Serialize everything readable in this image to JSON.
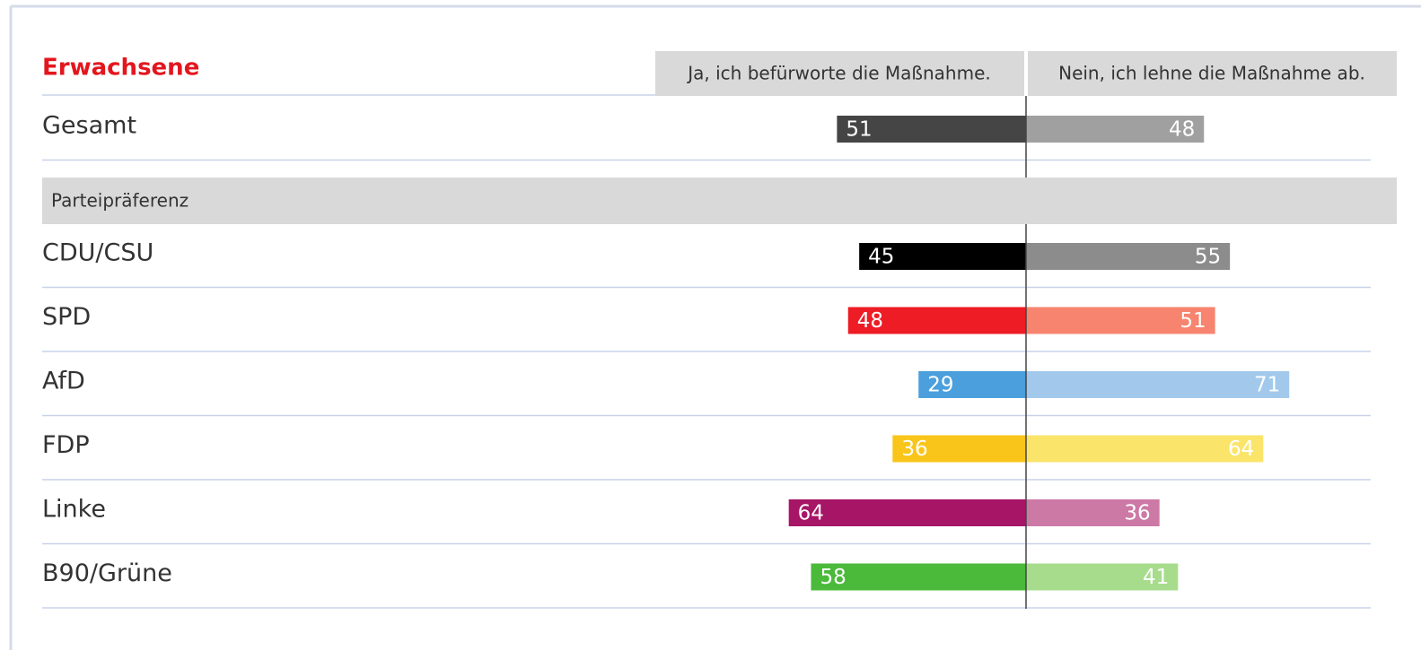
{
  "chart_data": {
    "type": "bar",
    "title": "Erwachsene",
    "section_label": "Parteipräferenz",
    "categories": [
      "Gesamt",
      "CDU/CSU",
      "SPD",
      "AfD",
      "FDP",
      "Linke",
      "B90/Grüne"
    ],
    "series": [
      {
        "name": "Ja, ich befürworte die Maßnahme.",
        "direction": "left",
        "colors": [
          "#454545",
          "#000000",
          "#ee1c25",
          "#4a9fdc",
          "#f9c51a",
          "#a61566",
          "#4bb93a"
        ],
        "values": [
          51,
          45,
          48,
          29,
          36,
          64,
          58
        ]
      },
      {
        "name": "Nein, ich lehne die Maßnahme ab.",
        "direction": "right",
        "colors": [
          "#a0a0a0",
          "#8c8c8c",
          "#f7846f",
          "#a2c9ec",
          "#fae56a",
          "#cc79a6",
          "#a6dc8c"
        ],
        "values": [
          48,
          55,
          51,
          71,
          64,
          36,
          41
        ]
      }
    ]
  }
}
